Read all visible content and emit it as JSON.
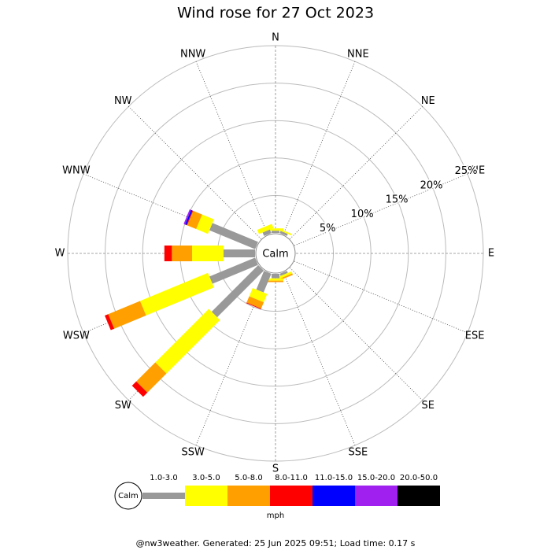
{
  "chart_data": {
    "type": "windrose",
    "title": "Wind rose for 27 Oct 2023",
    "directions": [
      "N",
      "NNE",
      "NE",
      "ENE",
      "E",
      "ESE",
      "SE",
      "SSE",
      "S",
      "SSW",
      "SW",
      "WSW",
      "W",
      "WNW",
      "NW",
      "NNW"
    ],
    "calm_label": "Calm",
    "rlim": [
      0,
      25
    ],
    "rticks": [
      {
        "value": 5,
        "label": "5%"
      },
      {
        "value": 10,
        "label": "10%"
      },
      {
        "value": 15,
        "label": "15%"
      },
      {
        "value": 20,
        "label": "20%"
      },
      {
        "value": 25,
        "label": "25%"
      }
    ],
    "series": [
      {
        "name": "1.0-3.0",
        "color": "#999999",
        "values": [
          0.3,
          0.3,
          0,
          0,
          0,
          0,
          0,
          0.3,
          0.6,
          2.7,
          8.8,
          6.6,
          4.2,
          6.6,
          0,
          0.5
        ]
      },
      {
        "name": "3.0-5.0",
        "color": "#ffff00",
        "values": [
          0.3,
          0.2,
          0,
          0,
          0,
          0,
          0,
          0.3,
          0.3,
          1.2,
          10.1,
          9.8,
          4.2,
          1.7,
          0,
          0.6
        ]
      },
      {
        "name": "5.0-8.0",
        "color": "#ff9f00",
        "values": [
          0,
          0,
          0,
          0,
          0,
          0,
          0,
          0.2,
          0.2,
          0.9,
          3.6,
          4.6,
          2.7,
          1.3,
          0,
          0
        ]
      },
      {
        "name": "8.0-11.0",
        "color": "#ff0000",
        "values": [
          0,
          0,
          0,
          0,
          0,
          0,
          0,
          0,
          0,
          0.1,
          0.8,
          0.5,
          1.0,
          0.1,
          0,
          0
        ]
      },
      {
        "name": "11.0-15.0",
        "color": "#0000ff",
        "values": [
          0,
          0,
          0,
          0,
          0,
          0,
          0,
          0,
          0,
          0,
          0,
          0,
          0,
          0.2,
          0,
          0
        ]
      },
      {
        "name": "15.0-20.0",
        "color": "#a020f0",
        "values": [
          0,
          0,
          0,
          0,
          0,
          0,
          0,
          0,
          0,
          0,
          0,
          0,
          0,
          0.2,
          0,
          0
        ]
      },
      {
        "name": "20.0-50.0",
        "color": "#000000",
        "values": [
          0,
          0,
          0,
          0,
          0,
          0,
          0,
          0,
          0,
          0,
          0,
          0,
          0,
          0,
          0,
          0
        ]
      }
    ],
    "legend_unit": "mph",
    "footer": "@nw3weather. Generated: 25 Jun 2025 09:51; Load time: 0.17 s"
  }
}
